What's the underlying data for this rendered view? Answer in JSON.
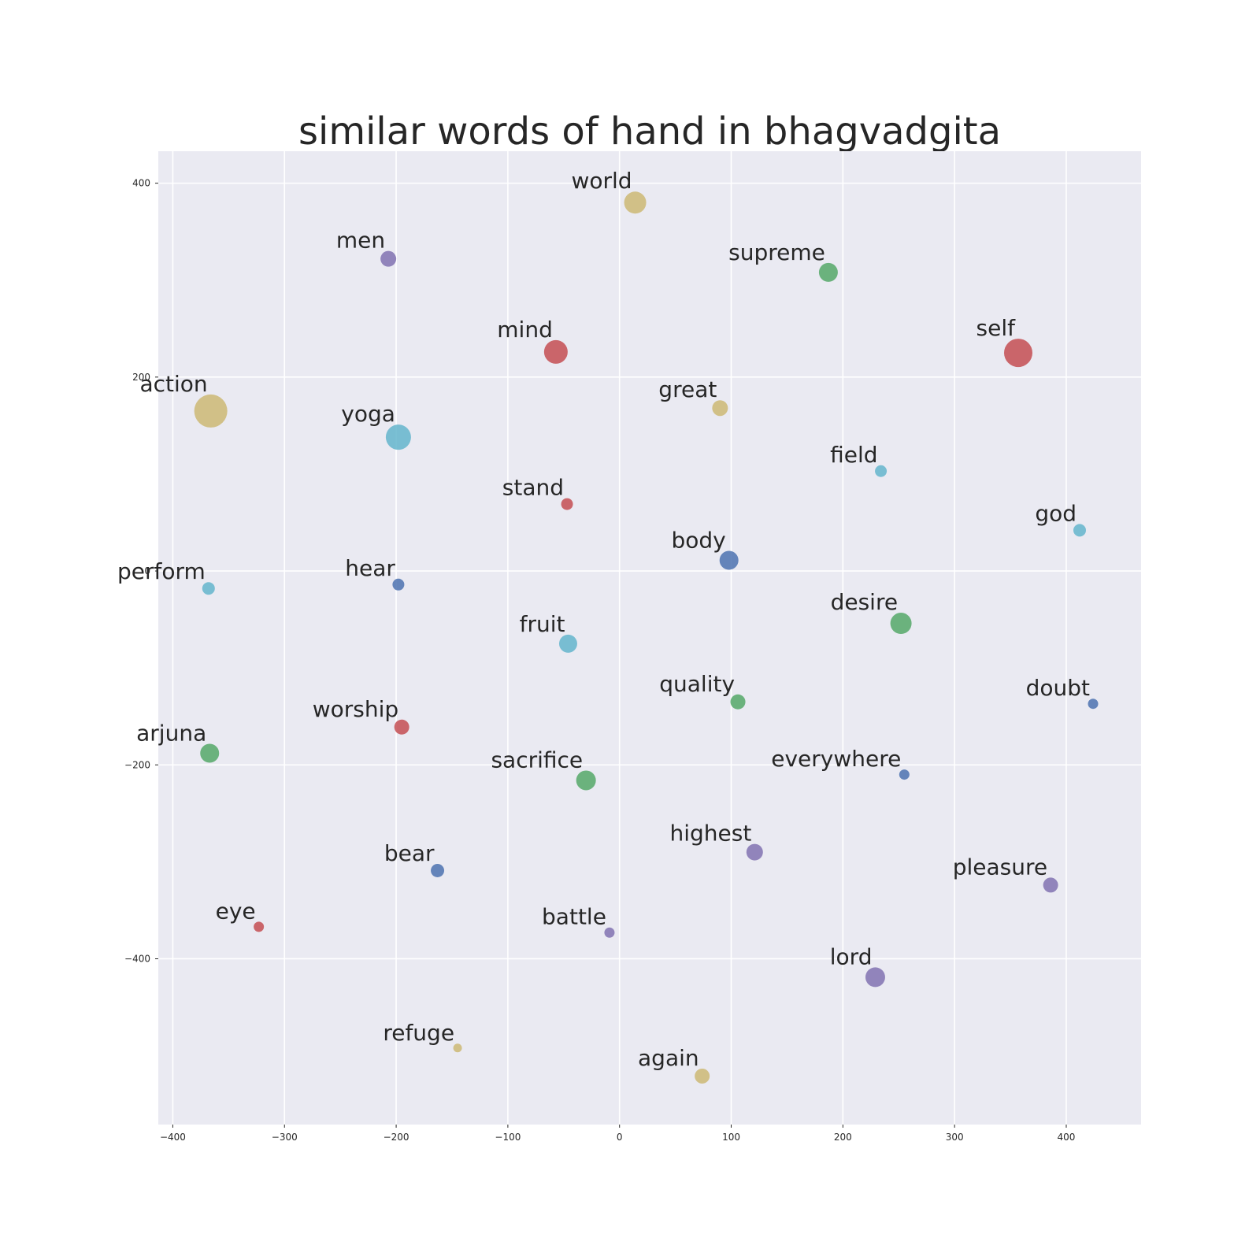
{
  "chart_data": {
    "type": "scatter",
    "title": "similar words of hand in bhagvadgita",
    "xlabel": "",
    "ylabel": "",
    "xlim": [
      -413,
      467
    ],
    "ylim": [
      -571,
      433
    ],
    "xticks": [
      -400,
      -300,
      -200,
      -100,
      0,
      100,
      200,
      300,
      400
    ],
    "yticks": [
      400,
      200,
      0,
      -200,
      -400
    ],
    "xtick_labels": [
      "−400",
      "−300",
      "−200",
      "−100",
      "0",
      "100",
      "200",
      "300",
      "400"
    ],
    "ytick_labels": [
      "400",
      "200",
      "0",
      "−200",
      "−400"
    ],
    "grid": true,
    "background": "#eaeaf2",
    "points": [
      {
        "label": "world",
        "x": 14,
        "y": 380,
        "size": 14,
        "color": "#ccb974"
      },
      {
        "label": "men",
        "x": -207,
        "y": 322,
        "size": 10,
        "color": "#8172b2"
      },
      {
        "label": "supreme",
        "x": 187,
        "y": 308,
        "size": 12,
        "color": "#55a868"
      },
      {
        "label": "mind",
        "x": -57,
        "y": 226,
        "size": 15,
        "color": "#c44e52"
      },
      {
        "label": "self",
        "x": 357,
        "y": 225,
        "size": 18,
        "color": "#c44e52"
      },
      {
        "label": "action",
        "x": -366,
        "y": 165,
        "size": 21,
        "color": "#ccb974"
      },
      {
        "label": "great",
        "x": 90,
        "y": 168,
        "size": 10,
        "color": "#ccb974"
      },
      {
        "label": "yoga",
        "x": -198,
        "y": 138,
        "size": 16,
        "color": "#64b5cd"
      },
      {
        "label": "field",
        "x": 234,
        "y": 103,
        "size": 7.5,
        "color": "#64b5cd"
      },
      {
        "label": "stand",
        "x": -47,
        "y": 69,
        "size": 7.5,
        "color": "#c44e52"
      },
      {
        "label": "god",
        "x": 412,
        "y": 42,
        "size": 8,
        "color": "#64b5cd"
      },
      {
        "label": "body",
        "x": 98,
        "y": 11,
        "size": 12,
        "color": "#4c72b0"
      },
      {
        "label": "perform",
        "x": -368,
        "y": -18,
        "size": 8,
        "color": "#64b5cd"
      },
      {
        "label": "hear",
        "x": -198,
        "y": -14,
        "size": 7.5,
        "color": "#4c72b0"
      },
      {
        "label": "desire",
        "x": 252,
        "y": -54,
        "size": 13.5,
        "color": "#55a868"
      },
      {
        "label": "fruit",
        "x": -46,
        "y": -75,
        "size": 11.5,
        "color": "#64b5cd"
      },
      {
        "label": "quality",
        "x": 106,
        "y": -135,
        "size": 9.5,
        "color": "#55a868"
      },
      {
        "label": "doubt",
        "x": 424,
        "y": -137,
        "size": 6.5,
        "color": "#4c72b0"
      },
      {
        "label": "worship",
        "x": -195,
        "y": -161,
        "size": 9.5,
        "color": "#c44e52"
      },
      {
        "label": "arjuna",
        "x": -367,
        "y": -188,
        "size": 12,
        "color": "#55a868"
      },
      {
        "label": "sacrifice",
        "x": -30,
        "y": -216,
        "size": 12.5,
        "color": "#55a868"
      },
      {
        "label": "everywhere",
        "x": 255,
        "y": -210,
        "size": 6.5,
        "color": "#4c72b0"
      },
      {
        "label": "highest",
        "x": 121,
        "y": -290,
        "size": 10.5,
        "color": "#8172b2"
      },
      {
        "label": "bear",
        "x": -163,
        "y": -309,
        "size": 8.5,
        "color": "#4c72b0"
      },
      {
        "label": "pleasure",
        "x": 386,
        "y": -324,
        "size": 9.5,
        "color": "#8172b2"
      },
      {
        "label": "eye",
        "x": -323,
        "y": -367,
        "size": 6.5,
        "color": "#c44e52"
      },
      {
        "label": "battle",
        "x": -9,
        "y": -373,
        "size": 6.5,
        "color": "#8172b2"
      },
      {
        "label": "lord",
        "x": 229,
        "y": -419,
        "size": 12.5,
        "color": "#8172b2"
      },
      {
        "label": "refuge",
        "x": -145,
        "y": -492,
        "size": 5.5,
        "color": "#ccb974"
      },
      {
        "label": "again",
        "x": 74,
        "y": -521,
        "size": 9.5,
        "color": "#ccb974"
      }
    ]
  }
}
